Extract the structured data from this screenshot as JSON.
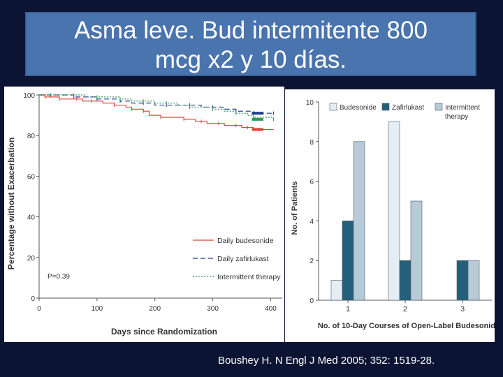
{
  "slide": {
    "title_line1": "Asma leve. Bud intermitente 800",
    "title_line2": "mcg x2 y 10 días.",
    "citation": "Boushey H. N Engl J Med 2005; 352: 1519-28."
  },
  "chart_data": [
    {
      "type": "line",
      "title": "",
      "xlabel": "Days since Randomization",
      "ylabel": "Percentage without Exacerbation",
      "xlim": [
        0,
        420
      ],
      "ylim": [
        0,
        100
      ],
      "xticks": [
        0,
        100,
        200,
        300,
        400
      ],
      "yticks": [
        0,
        20,
        40,
        60,
        80,
        100
      ],
      "annotation": "P=0.39",
      "legend_position": "bottom-right",
      "grid": false,
      "series": [
        {
          "name": "Daily budesonide",
          "color": "#e0453c",
          "dash": "solid",
          "x": [
            0,
            10,
            20,
            35,
            50,
            65,
            75,
            90,
            110,
            130,
            150,
            160,
            170,
            180,
            190,
            210,
            230,
            250,
            270,
            280,
            290,
            310,
            320,
            340,
            350,
            360,
            370,
            380,
            405
          ],
          "y": [
            100,
            99,
            99,
            98,
            98,
            98,
            97,
            97,
            96,
            95,
            94,
            93,
            93,
            92,
            90,
            89,
            89,
            88,
            87,
            87,
            86,
            86,
            85,
            85,
            84,
            84,
            83,
            83,
            83
          ]
        },
        {
          "name": "Daily zafirlukast",
          "color": "#1f3c8c",
          "dash": "long",
          "x": [
            0,
            20,
            40,
            60,
            80,
            100,
            120,
            140,
            160,
            180,
            200,
            220,
            240,
            260,
            280,
            300,
            320,
            340,
            360,
            370,
            380,
            405
          ],
          "y": [
            100,
            100,
            100,
            99,
            99,
            98,
            98,
            97,
            96,
            96,
            95,
            95,
            95,
            95,
            94,
            94,
            93,
            92,
            92,
            91,
            91,
            91
          ]
        },
        {
          "name": "Intermittent therapy",
          "color": "#2e9a5a",
          "dash": "dotted",
          "x": [
            0,
            20,
            40,
            60,
            80,
            100,
            120,
            140,
            160,
            180,
            200,
            220,
            240,
            260,
            280,
            300,
            320,
            340,
            360,
            370,
            380,
            405
          ],
          "y": [
            100,
            100,
            100,
            100,
            99,
            99,
            99,
            98,
            97,
            97,
            96,
            96,
            95,
            94,
            94,
            93,
            92,
            91,
            90,
            89,
            89,
            88
          ]
        }
      ]
    },
    {
      "type": "bar",
      "title": "",
      "xlabel": "No. of 10-Day Courses of Open-Label Budesonide",
      "ylabel": "No. of Patients",
      "categories": [
        "1",
        "2",
        "3"
      ],
      "ylim": [
        0,
        10
      ],
      "yticks": [
        0,
        2,
        4,
        6,
        8,
        10
      ],
      "legend_position": "top",
      "grid": false,
      "series": [
        {
          "name": "Budesonide",
          "color": "#e6eef5",
          "values": [
            1,
            9,
            0
          ]
        },
        {
          "name": "Zafirlukast",
          "color": "#24607a",
          "values": [
            4,
            2,
            2
          ]
        },
        {
          "name": "Intermittent therapy",
          "color": "#b7cad8",
          "values": [
            8,
            5,
            2
          ]
        }
      ]
    }
  ]
}
